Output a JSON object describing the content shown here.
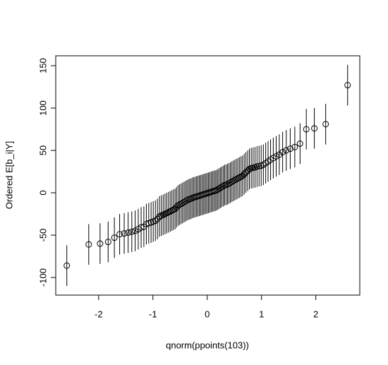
{
  "chart_data": {
    "type": "scatter",
    "xlabel": "qnorm(ppoints(103))",
    "ylabel": "Ordered E[b_i|Y]",
    "xlim": [
      -2.79,
      2.81
    ],
    "ylim": [
      -120.8,
      161.7
    ],
    "xticks": [
      -2,
      -1,
      0,
      1,
      2
    ],
    "yticks": [
      -100,
      -50,
      0,
      50,
      100,
      150
    ],
    "color": "#000000",
    "x": [
      -2.586,
      -2.182,
      -1.973,
      -1.825,
      -1.71,
      -1.613,
      -1.529,
      -1.456,
      -1.389,
      -1.327,
      -1.27,
      -1.217,
      -1.167,
      -1.121,
      -1.077,
      -1.034,
      -0.994,
      -0.955,
      -0.917,
      -0.88,
      -0.845,
      -0.811,
      -0.777,
      -0.745,
      -0.713,
      -0.682,
      -0.651,
      -0.622,
      -0.592,
      -0.564,
      -0.536,
      -0.508,
      -0.48,
      -0.454,
      -0.426,
      -0.4,
      -0.374,
      -0.348,
      -0.322,
      -0.297,
      -0.271,
      -0.246,
      -0.221,
      -0.196,
      -0.171,
      -0.147,
      -0.122,
      -0.098,
      -0.073,
      -0.049,
      -0.024,
      0,
      0.024,
      0.049,
      0.073,
      0.098,
      0.122,
      0.147,
      0.171,
      0.196,
      0.221,
      0.246,
      0.271,
      0.297,
      0.322,
      0.348,
      0.374,
      0.4,
      0.426,
      0.454,
      0.48,
      0.508,
      0.536,
      0.564,
      0.592,
      0.622,
      0.651,
      0.682,
      0.713,
      0.745,
      0.777,
      0.811,
      0.845,
      0.88,
      0.917,
      0.955,
      0.994,
      1.034,
      1.077,
      1.121,
      1.167,
      1.217,
      1.27,
      1.327,
      1.389,
      1.456,
      1.529,
      1.613,
      1.71,
      1.825,
      1.973,
      2.182,
      2.586
    ],
    "values": [
      -86,
      -61,
      -60,
      -58,
      -53,
      -49,
      -48,
      -47,
      -46,
      -45,
      -43,
      -41,
      -40,
      -37,
      -36,
      -35,
      -34,
      -33,
      -31,
      -28,
      -27,
      -26,
      -25,
      -24,
      -23,
      -22,
      -21,
      -20,
      -19,
      -17,
      -15,
      -14,
      -13,
      -12,
      -11,
      -10,
      -9,
      -8,
      -7.5,
      -7,
      -6,
      -5.5,
      -5,
      -4.5,
      -4,
      -3.5,
      -3,
      -2.5,
      -2,
      -1.5,
      -1,
      -0.5,
      0,
      0.5,
      1,
      1.5,
      2,
      2.5,
      3,
      4,
      5,
      6,
      7,
      8,
      9,
      9.5,
      10,
      11,
      12,
      13,
      14,
      15,
      16,
      17,
      18,
      19,
      20,
      22,
      24,
      26,
      28,
      29,
      29.5,
      30,
      31,
      31.5,
      32,
      33,
      35,
      37,
      39,
      41,
      43,
      45,
      48,
      50,
      52,
      54,
      58,
      75,
      76,
      81,
      127
    ],
    "errors": [
      24,
      24,
      24,
      24,
      24,
      24,
      24,
      24,
      24,
      24,
      24,
      24,
      24,
      24,
      24,
      24,
      24,
      24,
      24,
      24,
      24,
      24,
      24,
      24,
      24,
      24,
      24,
      24,
      24,
      24,
      24,
      24,
      24,
      24,
      24,
      24,
      24,
      24,
      24,
      24,
      24,
      24,
      24,
      24,
      24,
      24,
      24,
      24,
      24,
      24,
      24,
      24,
      24,
      24,
      24,
      24,
      24,
      24,
      24,
      24,
      24,
      24,
      24,
      24,
      24,
      24,
      24,
      24,
      24,
      24,
      24,
      24,
      24,
      24,
      24,
      24,
      24,
      24,
      24,
      24,
      24,
      24,
      24,
      24,
      24,
      24,
      24,
      24,
      24,
      24,
      24,
      24,
      24,
      24,
      24,
      24,
      24,
      24,
      24,
      24,
      24,
      24,
      24
    ]
  }
}
